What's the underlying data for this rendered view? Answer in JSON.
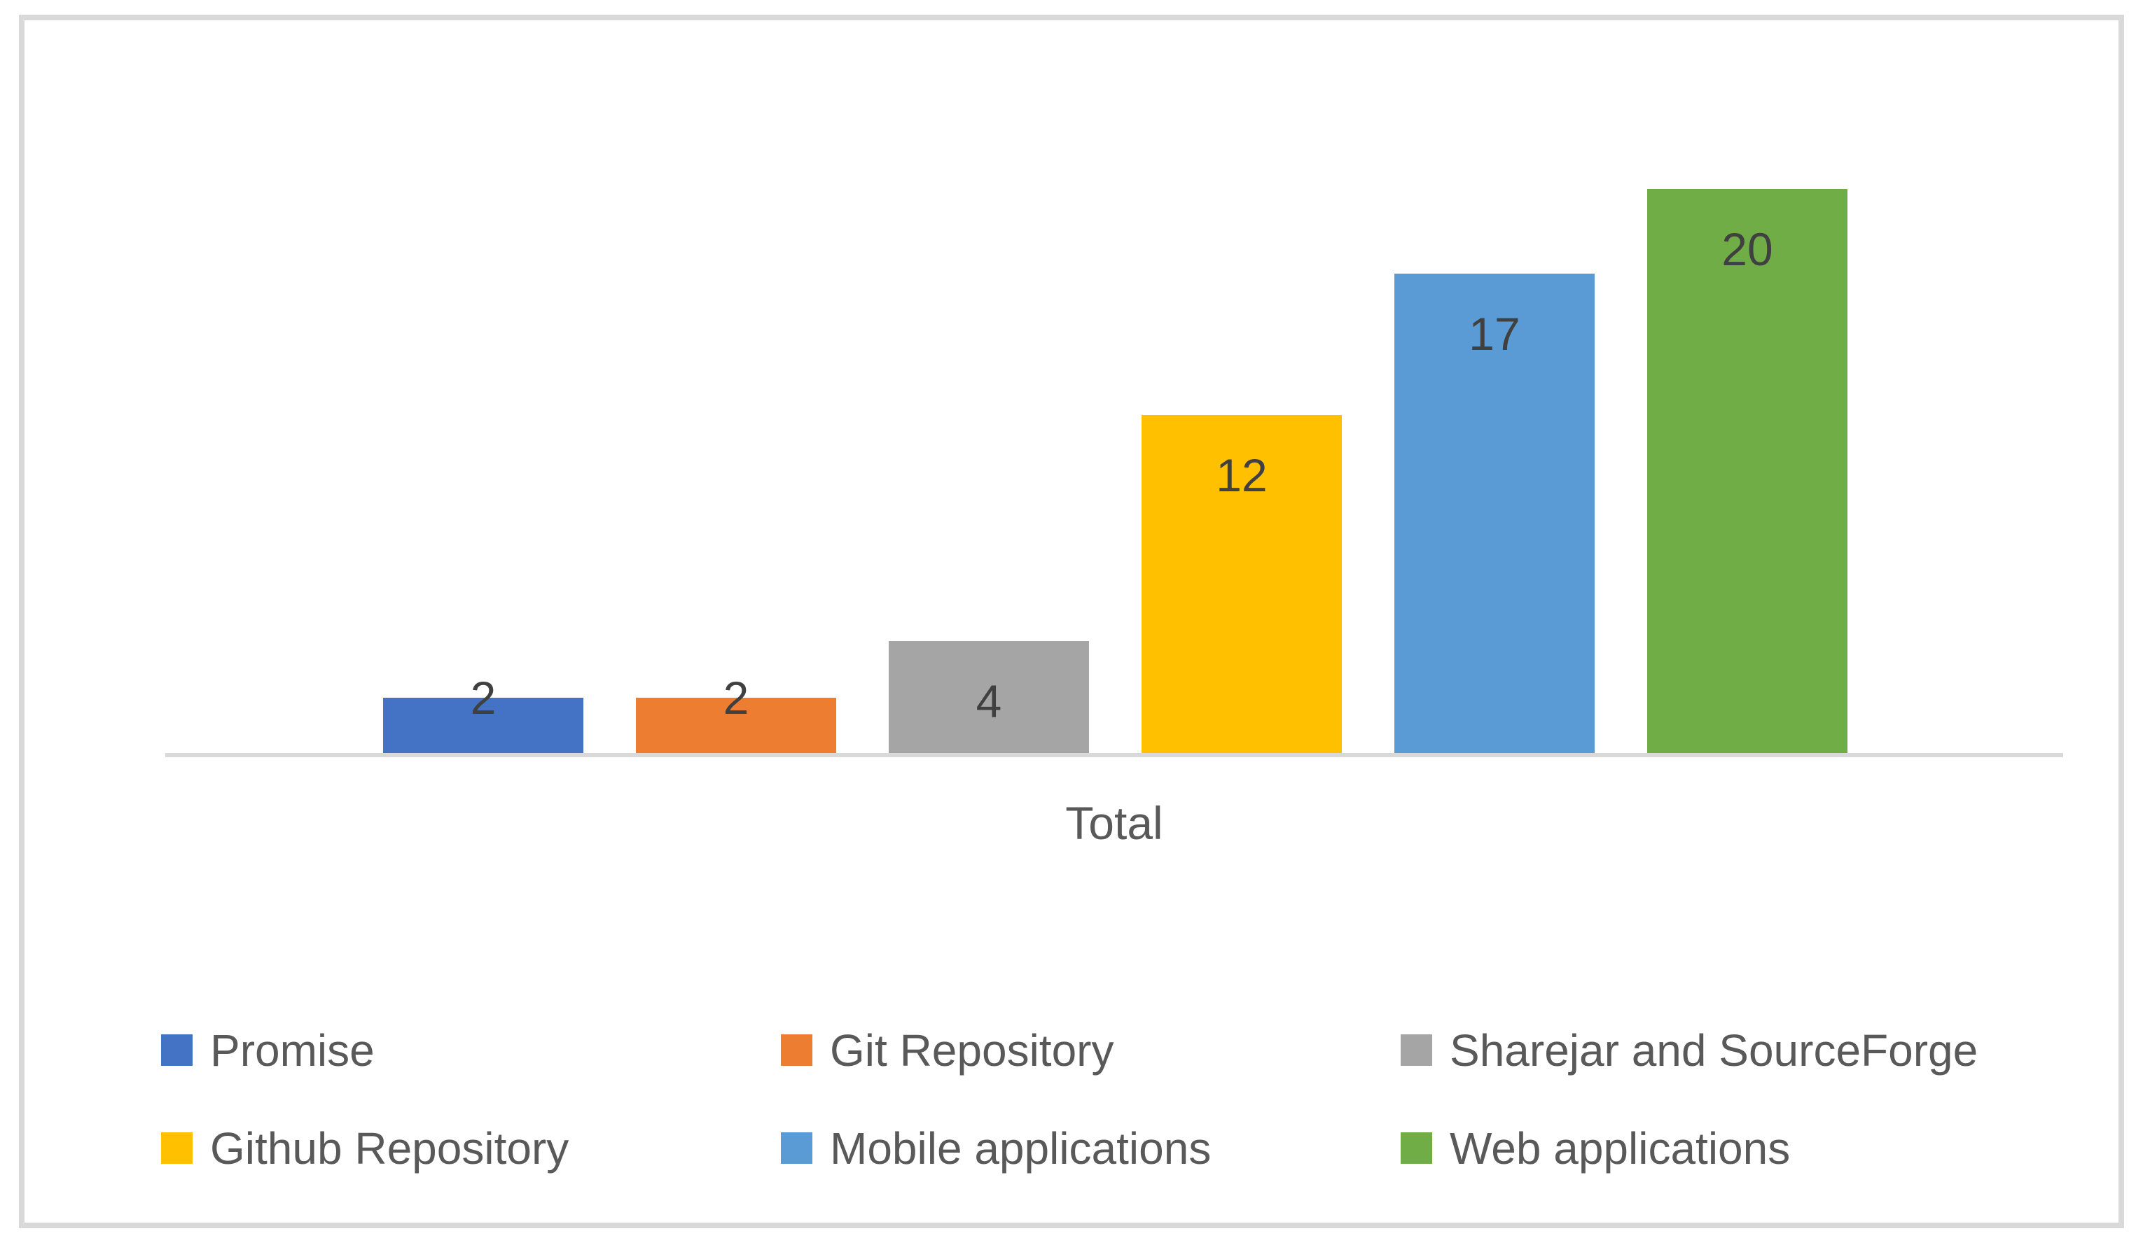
{
  "figure": {
    "background_color": "#FFFFFF",
    "border_color": "#D9D9D9"
  },
  "chart_data": {
    "type": "bar",
    "title": "",
    "categories": [
      "Total"
    ],
    "xlabel": "Total",
    "ylabel": "",
    "ylim": [
      0,
      20
    ],
    "grid": false,
    "y_axis_visible": false,
    "legend_position": "bottom",
    "legend_columns": 3,
    "axis_line_color": "#D9D9D9",
    "data_label_color": "#404040",
    "axis_text_color": "#595959",
    "data_labels_shown": true,
    "series": [
      {
        "name": "Promise",
        "values": [
          2
        ],
        "data_label": "2",
        "color": "#4472C4"
      },
      {
        "name": "Git Repository",
        "values": [
          2
        ],
        "data_label": "2",
        "color": "#ED7D31"
      },
      {
        "name": "Sharejar and SourceForge",
        "values": [
          4
        ],
        "data_label": "4",
        "color": "#A5A5A5"
      },
      {
        "name": "Github Repository",
        "values": [
          12
        ],
        "data_label": "12",
        "color": "#FFC000"
      },
      {
        "name": "Mobile applications",
        "values": [
          17
        ],
        "data_label": "17",
        "color": "#5B9BD5"
      },
      {
        "name": "Web applications",
        "values": [
          20
        ],
        "data_label": "20",
        "color": "#70AD47"
      }
    ]
  }
}
